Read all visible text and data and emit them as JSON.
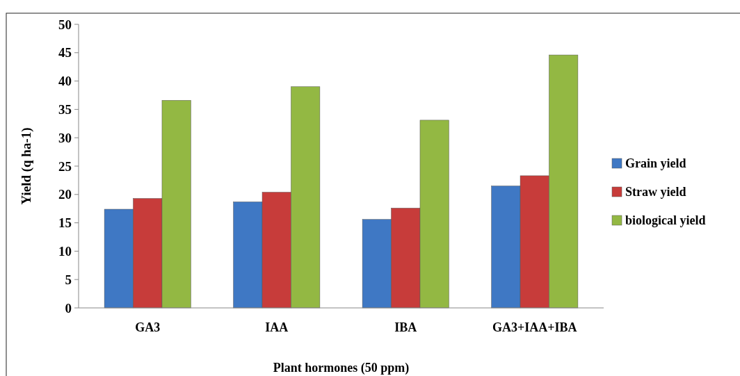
{
  "chart_data": {
    "type": "bar",
    "xlabel": "Plant hormones (50 ppm)",
    "ylabel": "Yield (q ha-1)",
    "categories": [
      "GA3",
      "IAA",
      "IBA",
      "GA3+IAA+IBA"
    ],
    "series": [
      {
        "name": "Grain yield",
        "color": "#3f78c4",
        "values": [
          17.4,
          18.7,
          15.6,
          21.5
        ]
      },
      {
        "name": "Straw yield",
        "color": "#c73c3a",
        "values": [
          19.3,
          20.4,
          17.6,
          23.3
        ]
      },
      {
        "name": "biological yield",
        "color": "#93b843",
        "values": [
          36.6,
          39.0,
          33.1,
          44.6
        ]
      }
    ],
    "ylim": [
      0,
      50
    ],
    "yticks": [
      0,
      5,
      10,
      15,
      20,
      25,
      30,
      35,
      40,
      45,
      50
    ],
    "grid": false,
    "legend": "right"
  }
}
